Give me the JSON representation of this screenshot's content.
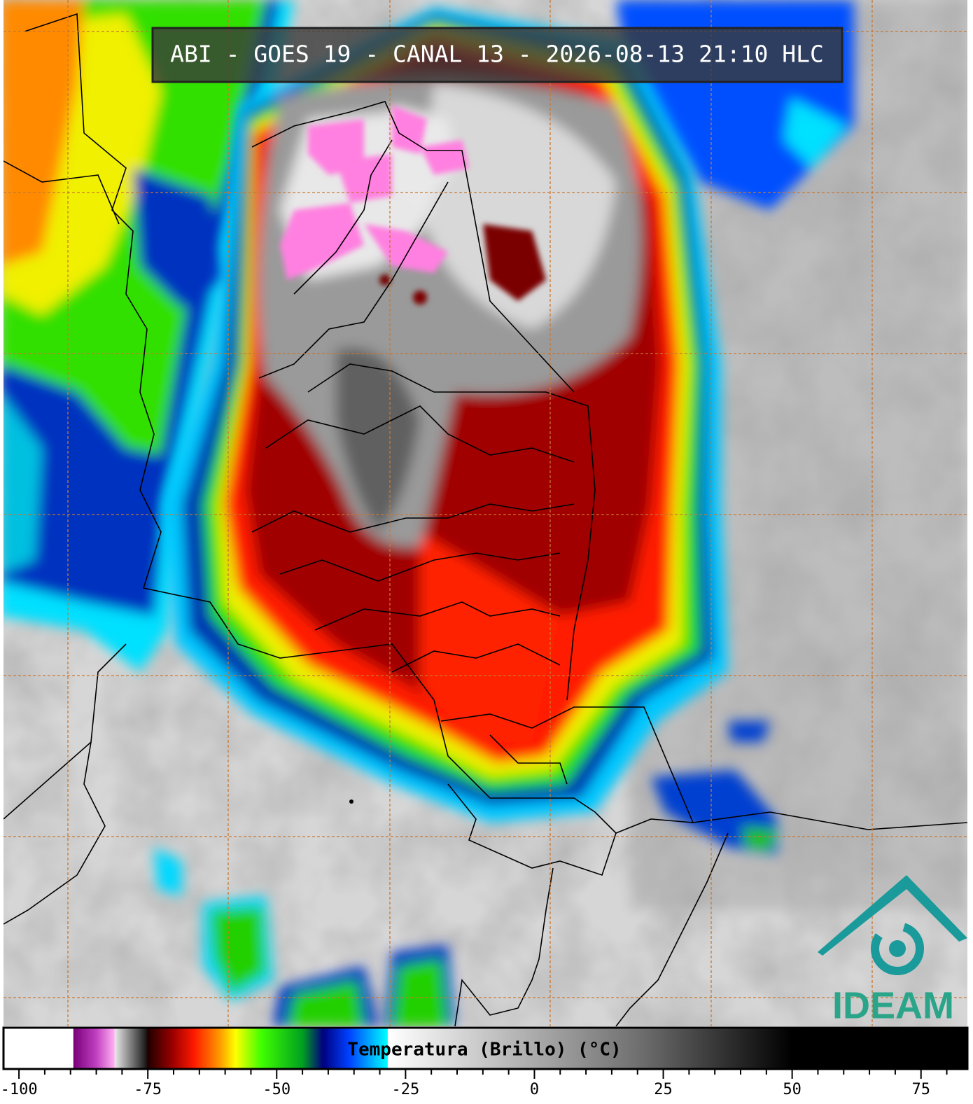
{
  "header": {
    "title": "ABI - GOES 19 - CANAL 13 - 2026-08-13 21:10 HLC"
  },
  "logo": {
    "text": "IDEAM"
  },
  "colorbar": {
    "label": "Temperatura (Brillo) (°C)",
    "lim": [
      -103,
      84
    ],
    "ticks": [
      -100,
      -75,
      -50,
      -25,
      0,
      25,
      50,
      75
    ],
    "minor_ticks": [
      -95,
      -90,
      -85,
      -80,
      -70,
      -65,
      -60,
      -55,
      -45,
      -40,
      -35,
      -30,
      -20,
      -15,
      -10,
      -5,
      5,
      10,
      15,
      20,
      30,
      35,
      40,
      45,
      55,
      60,
      65,
      70,
      80
    ],
    "colormap": [
      {
        "value": -103,
        "color": "#ffffff"
      },
      {
        "value": -89.5,
        "color": "#ffffff"
      },
      {
        "value": -89.4,
        "color": "#7a007a"
      },
      {
        "value": -85,
        "color": "#c040c0"
      },
      {
        "value": -81.5,
        "color": "#ffb0f0"
      },
      {
        "value": -81.4,
        "color": "#e8e8e8"
      },
      {
        "value": -75.5,
        "color": "#202020"
      },
      {
        "value": -75,
        "color": "#200000"
      },
      {
        "value": -70,
        "color": "#a00000"
      },
      {
        "value": -66,
        "color": "#ff1a00"
      },
      {
        "value": -61,
        "color": "#ff9a00"
      },
      {
        "value": -58,
        "color": "#ffff00"
      },
      {
        "value": -53,
        "color": "#40ff00"
      },
      {
        "value": -45,
        "color": "#00a020"
      },
      {
        "value": -41,
        "color": "#000080"
      },
      {
        "value": -36,
        "color": "#0040ff"
      },
      {
        "value": -28.5,
        "color": "#00ffff"
      },
      {
        "value": -28.4,
        "color": "#ffffff"
      },
      {
        "value": -10,
        "color": "#c8c8c8"
      },
      {
        "value": 20,
        "color": "#707070"
      },
      {
        "value": 50,
        "color": "#000000"
      },
      {
        "value": 84,
        "color": "#000000"
      }
    ]
  }
}
